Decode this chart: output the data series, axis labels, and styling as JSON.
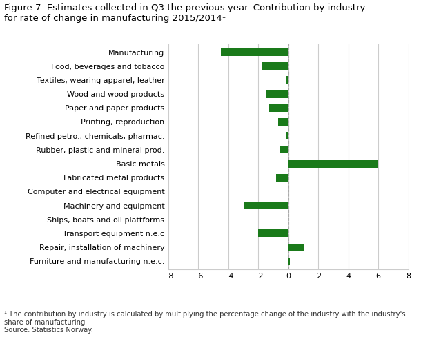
{
  "title_line1": "Figure 7. Estimates collected in Q3 the previous year. Contribution by industry",
  "title_line2": "for rate of change in manufacturing 2015/2014¹",
  "categories": [
    "Manufacturing",
    "Food, beverages and tobacco",
    "Textiles, wearing apparel, leather",
    "Wood and wood products",
    "Paper and paper products",
    "Printing, reproduction",
    "Refined petro., chemicals, pharmac.",
    "Rubber, plastic and mineral prod.",
    "Basic metals",
    "Fabricated metal products",
    "Computer and electrical equipment",
    "Machinery and equipment",
    "Ships, boats and oil plattforms",
    "Transport equipment n.e.c",
    "Repair, installation of machinery",
    "Furniture and manufacturing n.e.c."
  ],
  "values": [
    -4.5,
    -1.8,
    -0.2,
    -1.5,
    -1.3,
    -0.7,
    -0.2,
    -0.6,
    6.0,
    -0.8,
    0.0,
    -3.0,
    0.0,
    -2.0,
    1.0,
    0.1
  ],
  "bar_color": "#1a7a1a",
  "xlim": [
    -8,
    8
  ],
  "xticks": [
    -8,
    -6,
    -4,
    -2,
    0,
    2,
    4,
    6,
    8
  ],
  "grid_color": "#cccccc",
  "background_color": "#ffffff",
  "footnote_line1": "¹ The contribution by industry is calculated by multiplying the percentage change of the industry with the industry's",
  "footnote_line2": "share of manufacturing",
  "footnote_line3": "Source: Statistics Norway.",
  "title_fontsize": 9.5,
  "label_fontsize": 8.0,
  "tick_fontsize": 8.0,
  "footnote_fontsize": 7.2
}
